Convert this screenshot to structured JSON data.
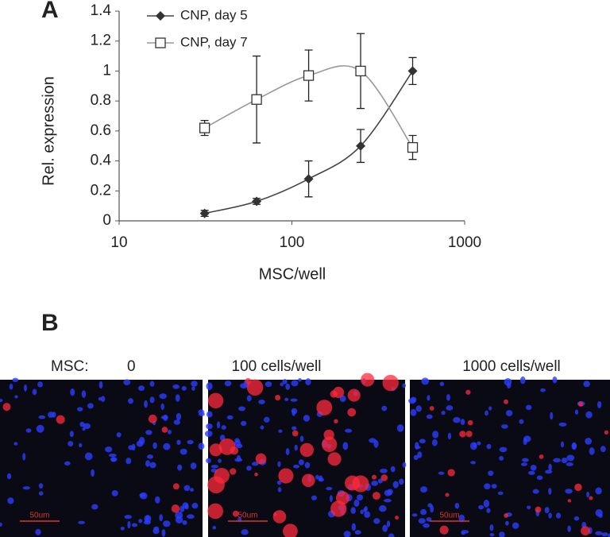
{
  "chart_data": {
    "type": "line",
    "panel_label": "A",
    "x_label": "MSC/well",
    "y_label": "Rel. expression",
    "x": [
      31.25,
      62.5,
      125,
      250,
      500
    ],
    "xscale": "log",
    "xlim": [
      10,
      1000
    ],
    "xticks": [
      10,
      100,
      1000
    ],
    "ylim": [
      0,
      1.4
    ],
    "yticks": [
      0,
      0.2,
      0.4,
      0.6,
      0.8,
      1,
      1.2,
      1.4
    ],
    "grid": false,
    "legend": "top-left",
    "series": [
      {
        "name": "CNP, day 5",
        "color": "#333333",
        "line_color": "#444444",
        "marker": "diamond",
        "values": [
          0.05,
          0.13,
          0.28,
          0.5,
          1.0
        ],
        "errors": [
          0.02,
          0.02,
          0.12,
          0.11,
          0.09
        ]
      },
      {
        "name": "CNP, day 7",
        "color": "#333333",
        "line_color": "#999999",
        "marker": "square",
        "values": [
          0.62,
          0.81,
          0.97,
          1.0,
          0.49
        ],
        "errors": [
          0.05,
          0.29,
          0.17,
          0.25,
          0.08
        ]
      }
    ]
  },
  "panel_b": {
    "label": "B",
    "prefix": "MSC:",
    "images": [
      {
        "caption": "0",
        "scale_bar": "50um"
      },
      {
        "caption": "100 cells/well",
        "scale_bar": "50um"
      },
      {
        "caption": "1000 cells/well",
        "scale_bar": "50um"
      }
    ]
  }
}
